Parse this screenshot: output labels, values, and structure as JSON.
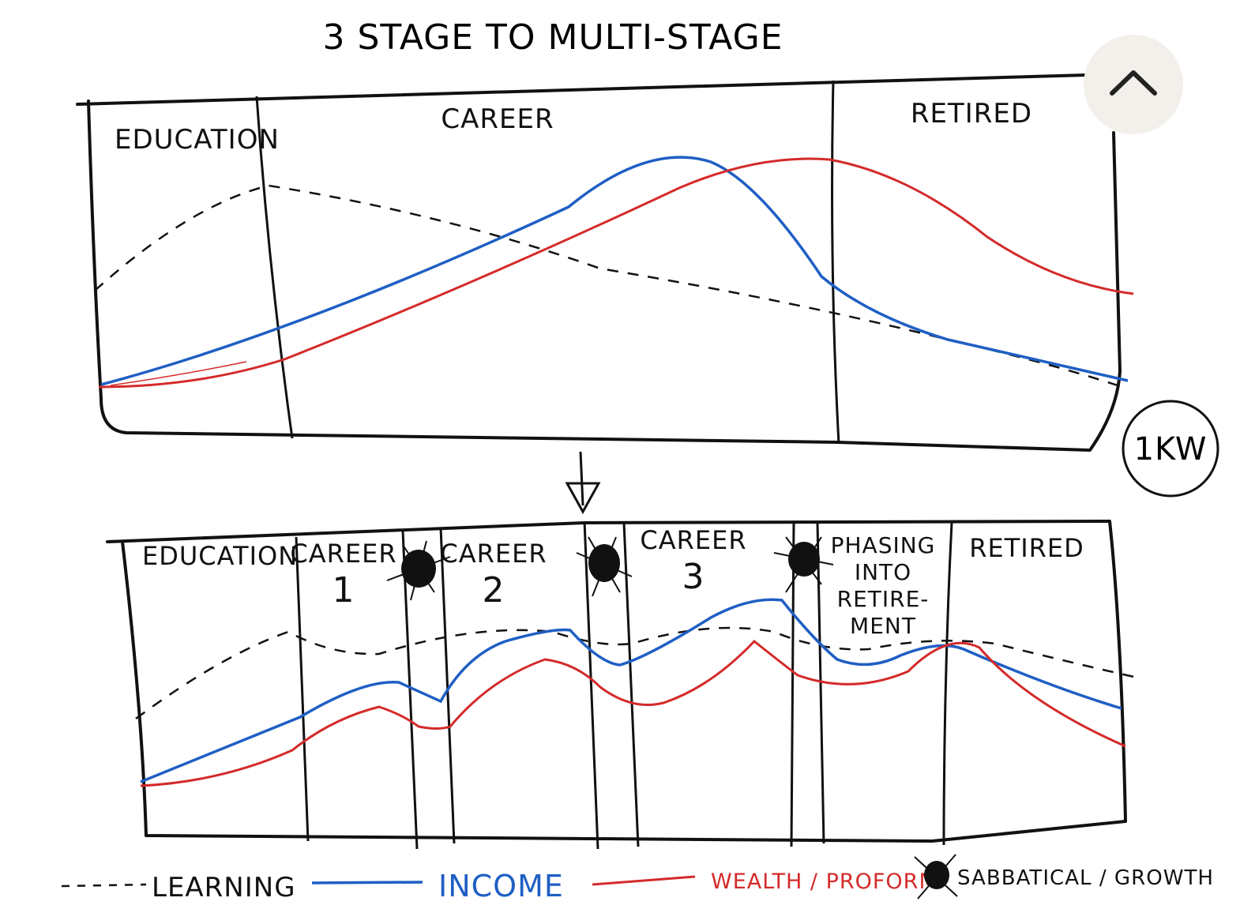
{
  "header": {
    "title": "3 STAGE TO MULTI-STAGE"
  },
  "top_panel": {
    "stages": [
      "EDUCATION",
      "CAREER",
      "RETIRED"
    ]
  },
  "badge": "1KW",
  "bottom_panel": {
    "stages": [
      {
        "lines": [
          "EDUCATION"
        ]
      },
      {
        "lines": [
          "CAREER",
          "1"
        ]
      },
      {
        "lines": [
          "CAREER",
          "2"
        ]
      },
      {
        "lines": [
          "CAREER",
          "3"
        ]
      },
      {
        "lines": [
          "PHASING",
          "INTO",
          "RETIRE-",
          "MENT"
        ]
      },
      {
        "lines": [
          "RETIRED"
        ]
      }
    ]
  },
  "legend": {
    "learning": "LEARNING",
    "income": "INCOME",
    "wealth": "WEALTH / PROFORM",
    "sabbatical": "SABBATICAL / GROWTH"
  }
}
